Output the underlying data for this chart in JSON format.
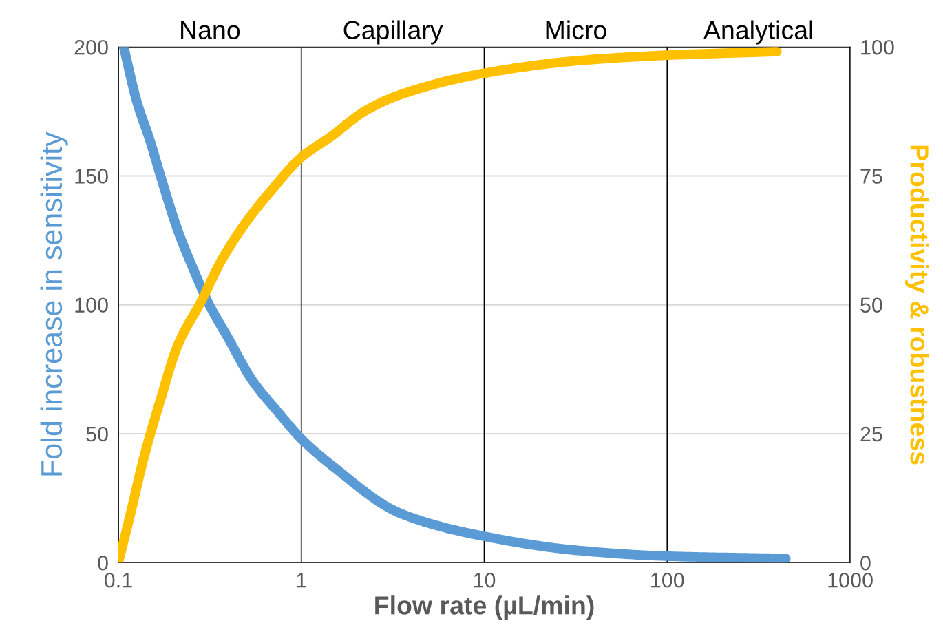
{
  "chart_data": {
    "type": "line",
    "xlabel": "Flow rate (µL/min)",
    "ylabel": "Fold increase in sensitivity",
    "y2label": "Productivity & robustness",
    "annotations": [
      "Nano",
      "Capillary",
      "Micro",
      "Analytical"
    ],
    "log": "x",
    "xlim": [
      0.1,
      1000
    ],
    "xticks": [
      0.1,
      1,
      10,
      100,
      1000
    ],
    "ylim": [
      0,
      200
    ],
    "yticks": [
      0,
      50,
      100,
      150,
      200
    ],
    "y2lim": [
      0,
      100
    ],
    "y2ticks": [
      0,
      25,
      50,
      75,
      100
    ],
    "grid": true,
    "marker": "none",
    "line_style": "solid",
    "series": [
      {
        "color": "#5b9bd5",
        "x": [
          0.107,
          0.126,
          0.15,
          0.17,
          0.211,
          0.26,
          0.309,
          0.399,
          0.536,
          0.754,
          1.0,
          1.45,
          3.51,
          10,
          31.7,
          100,
          445
        ],
        "values": [
          200,
          179,
          163,
          150,
          129,
          113,
          101,
          87,
          71,
          58,
          48,
          38,
          19,
          10.2,
          4.8,
          2.5,
          1.6
        ]
      },
      {
        "color": "#ffc000",
        "axis": "y2",
        "x": [
          0.1,
          0.116,
          0.138,
          0.17,
          0.211,
          0.284,
          0.366,
          0.494,
          0.694,
          1.0,
          1.45,
          2.26,
          3.51,
          10,
          31.7,
          100,
          398
        ],
        "values": [
          0,
          9.2,
          20.4,
          31.6,
          42.1,
          50.7,
          58.6,
          65.8,
          72.4,
          78.6,
          82.6,
          87.7,
          90.8,
          94.9,
          97.3,
          98.4,
          99.1
        ]
      }
    ]
  }
}
